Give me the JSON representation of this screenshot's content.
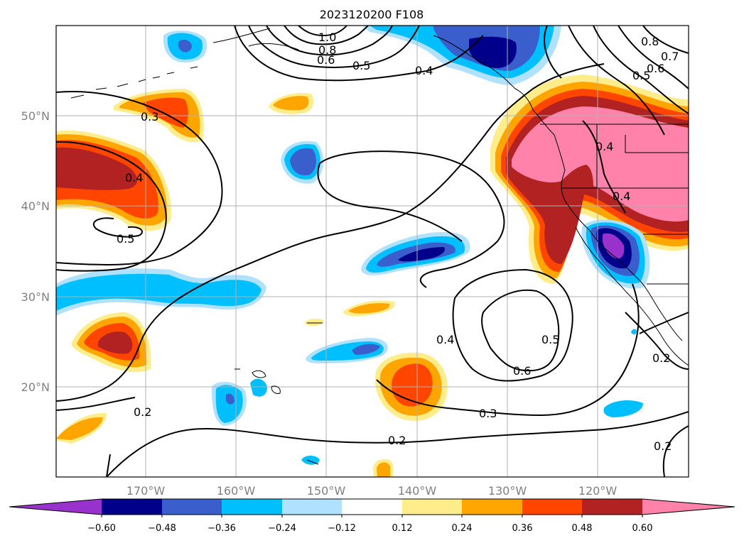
{
  "title": "2023120200 F108",
  "map": {
    "lat_labels": [
      "50°N",
      "40°N",
      "30°N",
      "20°N"
    ],
    "lon_labels": [
      "170°W",
      "160°W",
      "150°W",
      "140°W",
      "130°W",
      "120°W"
    ],
    "contour_labels": [
      "1.0",
      "0.8",
      "0.6",
      "0.5",
      "0.4",
      "0.3",
      "0.4",
      "0.5",
      "0.8",
      "0.7",
      "0.6",
      "0.5",
      "0.4",
      "0.4",
      "0.4",
      "0.5",
      "0.6",
      "0.3",
      "0.2",
      "0.2",
      "0.2",
      "0.2"
    ],
    "gridlines": true
  },
  "colorbar": {
    "ticks": [
      "−0.60",
      "−0.48",
      "−0.36",
      "−0.24",
      "−0.12",
      "0.12",
      "0.24",
      "0.36",
      "0.48",
      "0.60"
    ],
    "colors": [
      "#9932cc",
      "#00008b",
      "#3a5fcd",
      "#00bfff",
      "#b0e2ff",
      "#ffffff",
      "#ffec8b",
      "#ffa500",
      "#ff4500",
      "#b22222",
      "#ff82ab"
    ],
    "extend": "both"
  }
}
